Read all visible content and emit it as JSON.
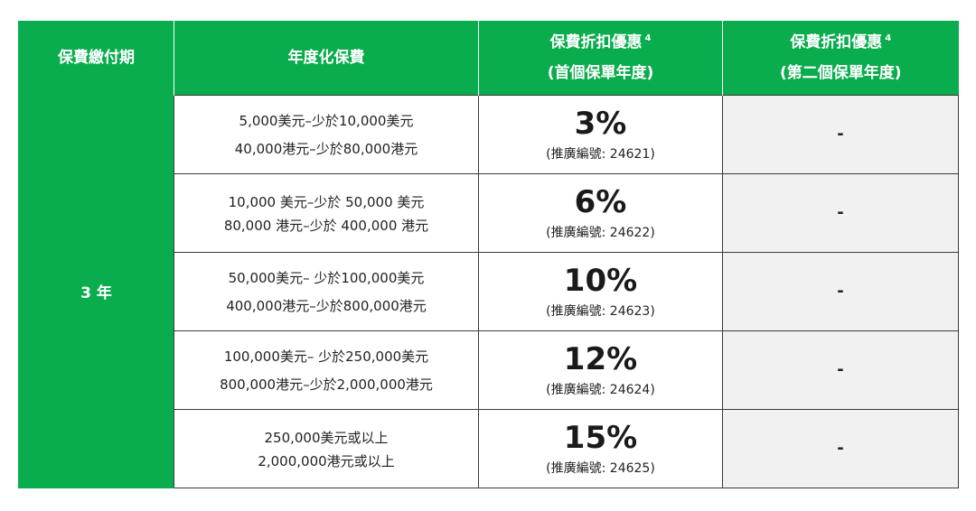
{
  "header": {
    "col1": "保費繳付期",
    "col2": "年度化保費",
    "col3_line1": "保費折扣優惠",
    "col3_sup": "4",
    "col3_line2": "(首個保單年度)",
    "col4_line1": "保費折扣優惠",
    "col4_sup": "4",
    "col4_line2": "(第二個保單年度)"
  },
  "payment_term": "3 年",
  "rows": [
    {
      "premium_usd": "5,000美元–少於10,000美元",
      "premium_hkd": "40,000港元–少於80,000港元",
      "discount": "3%",
      "promo": "(推廣編號: 24621)",
      "second_year": "-"
    },
    {
      "premium_usd": "10,000 美元–少於 50,000 美元",
      "premium_hkd": "80,000 港元–少於 400,000 港元",
      "discount": "6%",
      "promo": "(推廣編號: 24622)",
      "second_year": "-"
    },
    {
      "premium_usd": "50,000美元– 少於100,000美元",
      "premium_hkd": "400,000港元–少於800,000港元",
      "discount": "10%",
      "promo": "(推廣編號: 24623)",
      "second_year": "-"
    },
    {
      "premium_usd": "100,000美元– 少於250,000美元",
      "premium_hkd": "800,000港元–少於2,000,000港元",
      "discount": "12%",
      "promo": "(推廣編號: 24624)",
      "second_year": "-"
    },
    {
      "premium_usd": "250,000美元或以上",
      "premium_hkd": "2,000,000港元或以上",
      "discount": "15%",
      "promo": "(推廣編號: 24625)",
      "second_year": "-"
    }
  ],
  "colors": {
    "header_green": "#0aad4d",
    "second_year_bg": "#f1f1f1",
    "border": "#3a3a3a"
  }
}
